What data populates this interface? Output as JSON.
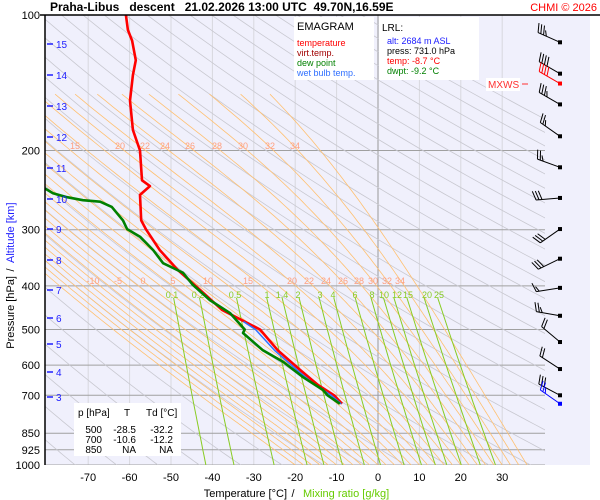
{
  "header": {
    "title": "Praha-Libus   descent   21.02.2026 13:00 UTC  49.70N,16.59E",
    "credit": "CHMI © 2026"
  },
  "legend": {
    "title": "EMAGRAM",
    "items": [
      {
        "label": "temperature",
        "color": "#ff0000"
      },
      {
        "label": "virt.temp.",
        "color": "#a00000"
      },
      {
        "label": "dew point",
        "color": "#008000"
      },
      {
        "label": "wet bulb temp.",
        "color": "#3070ff"
      }
    ]
  },
  "lrl": {
    "title": "LRL:",
    "alt": "alt: 2684 m ASL",
    "press": "press: 731.0 hPa",
    "temp": "temp: -8.7 °C",
    "dwpt": "dwpt: -9.2 °C"
  },
  "table": {
    "headers": [
      "p [hPa]",
      "T",
      "Td [°C]"
    ],
    "rows": [
      [
        "500",
        "-28.5",
        "-32.2"
      ],
      [
        "700",
        "-10.6",
        "-12.2"
      ],
      [
        "850",
        "NA",
        "NA"
      ]
    ]
  },
  "mxws_label": "MXWS",
  "chart_data": {
    "type": "line",
    "title": "EMAGRAM",
    "xlabel": "Temperature [°C]",
    "xlabel_sep": "/",
    "xlabel2": "Mixing ratio [g/kg]",
    "ylabel": "Pressure [hPa]",
    "ylabel_sep": "/",
    "ylabel2": "Altitude [km]",
    "xlim": [
      -80,
      40
    ],
    "ylim": [
      1000,
      100
    ],
    "yscale": "log",
    "x_ticks": [
      "-70",
      "-60",
      "-50",
      "-40",
      "-30",
      "-20",
      "-10",
      "0",
      "10",
      "20",
      "30"
    ],
    "y_ticks": [
      "100",
      "200",
      "300",
      "400",
      "500",
      "600",
      "700",
      "850",
      "925",
      "1000"
    ],
    "altitude_ticks": [
      "3",
      "4",
      "5",
      "6",
      "7",
      "8",
      "9",
      "10",
      "11",
      "12",
      "13",
      "14",
      "15"
    ],
    "mixing_ratio_labels": [
      "0.1",
      "0.2",
      "0.5",
      "1",
      "1.4",
      "2",
      "3",
      "4",
      "6",
      "8",
      "10",
      "12",
      "15",
      "20",
      "25"
    ],
    "moist_adiabat_labels_upper": [
      "15",
      "20",
      "22",
      "24",
      "26",
      "28",
      "30",
      "32",
      "34"
    ],
    "moist_adiabat_labels_lower": [
      "-10",
      "-5",
      "0",
      "5",
      "10",
      "15",
      "20",
      "22",
      "24",
      "26",
      "28",
      "30",
      "32",
      "34"
    ],
    "colors": {
      "background": "#f0f0fc",
      "dry_adiabat": "#c8c8d0",
      "moist_adiabat": "#ffc070",
      "mixing_ratio": "#88cc22",
      "moist_label": "#ffa080",
      "altitude": "#2020ff"
    },
    "series": [
      {
        "name": "temperature",
        "color": "#ff0000",
        "p": [
          100,
          108,
          114,
          126,
          136,
          155,
          180,
          200,
          233,
          240,
          251,
          286,
          300,
          333,
          369,
          408,
          452,
          500,
          556,
          615,
          664,
          700,
          731
        ],
        "t": [
          -60.9,
          -60.4,
          -59.4,
          -58.5,
          -59.2,
          -59.9,
          -59.2,
          -57.5,
          -57.0,
          -55.1,
          -57.5,
          -57.2,
          -56.0,
          -52.7,
          -48.3,
          -43.0,
          -37.7,
          -28.5,
          -24.2,
          -18.8,
          -14.5,
          -10.6,
          -8.7
        ]
      },
      {
        "name": "wet bulb temp.",
        "color": "#3070ff",
        "p": [
          480,
          500,
          556,
          615,
          664,
          700,
          731
        ],
        "t": [
          -32.5,
          -29.6,
          -25.0,
          -19.6,
          -15.2,
          -11.3,
          -8.9
        ]
      },
      {
        "name": "dew point",
        "color": "#008000",
        "p": [
          240,
          249,
          254,
          258,
          260,
          267,
          286,
          299,
          311,
          333,
          356,
          365,
          374,
          398,
          430,
          460,
          500,
          509,
          556,
          590,
          638,
          681,
          700,
          731
        ],
        "t": [
          -81.4,
          -78.5,
          -75.1,
          -71.3,
          -67.1,
          -64.3,
          -61.6,
          -60.6,
          -57.5,
          -54.3,
          -51.9,
          -49.5,
          -47.1,
          -44.7,
          -40.6,
          -35.7,
          -32.2,
          -32.6,
          -27.8,
          -22.9,
          -18.1,
          -13.3,
          -12.2,
          -9.2
        ]
      }
    ],
    "wind": [
      {
        "p": 115,
        "dir": 294,
        "kt": 35
      },
      {
        "p": 135,
        "dir": 300,
        "kt": 40
      },
      {
        "p": 142,
        "dir": 300,
        "kt": 40,
        "mxws": true
      },
      {
        "p": 158,
        "dir": 300,
        "kt": 35
      },
      {
        "p": 186,
        "dir": 305,
        "kt": 25
      },
      {
        "p": 218,
        "dir": 290,
        "kt": 25
      },
      {
        "p": 255,
        "dir": 265,
        "kt": 30
      },
      {
        "p": 299,
        "dir": 235,
        "kt": 30
      },
      {
        "p": 348,
        "dir": 244,
        "kt": 30
      },
      {
        "p": 404,
        "dir": 261,
        "kt": 15
      },
      {
        "p": 466,
        "dir": 280,
        "kt": 25
      },
      {
        "p": 533,
        "dir": 310,
        "kt": 20
      },
      {
        "p": 612,
        "dir": 303,
        "kt": 20
      },
      {
        "p": 700,
        "dir": 298,
        "kt": 30
      },
      {
        "p": 731,
        "dir": 305,
        "kt": 25,
        "lrl": true
      }
    ]
  }
}
